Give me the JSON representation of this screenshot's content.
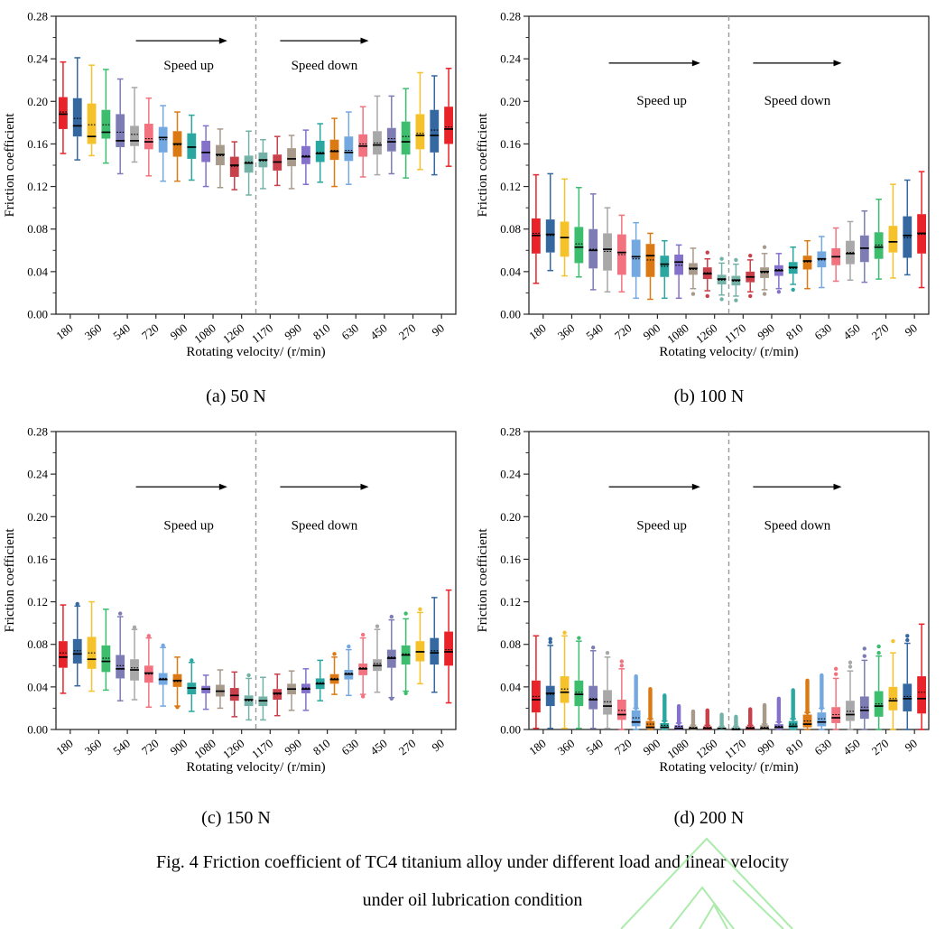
{
  "page": {
    "figure_caption_line1": "Fig. 4 Friction coefficient of TC4 titanium alloy under different load and linear velocity",
    "figure_caption_line2": "under oil lubrication condition"
  },
  "axis": {
    "ylabel": "Friction coefficient",
    "xlabel": "Rotating velocity/ (r/min)",
    "ymin": 0,
    "ymax": 0.28,
    "ytick_labels": [
      "0.00",
      "0.04",
      "0.08",
      "0.12",
      "0.16",
      "0.20",
      "0.24",
      "0.28"
    ],
    "minor_tick_step": 0.02,
    "categories": [
      "180",
      "360",
      "540",
      "720",
      "900",
      "1080",
      "1260",
      "1170",
      "990",
      "810",
      "630",
      "450",
      "270",
      "90"
    ]
  },
  "annotations": {
    "up": "Speed up",
    "down": "Speed down"
  },
  "palette": [
    "#e8232a",
    "#3568a0",
    "#f5c22b",
    "#3dbe6e",
    "#7d7cb5",
    "#a8a8a8",
    "#f2737f",
    "#74a8e0",
    "#db7a15",
    "#2aa7a0",
    "#8371cc",
    "#a79a8b",
    "#c9404a",
    "#74b2a7"
  ],
  "divider_color": "#999999",
  "frame_color": "#2b2b2b",
  "watermark": {
    "color": "#9fe89f"
  },
  "chart_data": [
    {
      "id": "a",
      "type": "box",
      "caption": "(a) 50 N",
      "load": "50 N",
      "arrow_v": 0.257,
      "text_v": 0.23,
      "boxes": [
        [
          0.151,
          0.174,
          0.188,
          0.19,
          0.204,
          0.237
        ],
        [
          0.145,
          0.167,
          0.177,
          0.184,
          0.203,
          0.241
        ],
        [
          0.149,
          0.16,
          0.167,
          0.178,
          0.198,
          0.234
        ],
        [
          0.142,
          0.165,
          0.171,
          0.178,
          0.192,
          0.23
        ],
        [
          0.132,
          0.157,
          0.163,
          0.171,
          0.188,
          0.221
        ],
        [
          0.143,
          0.158,
          0.163,
          0.169,
          0.177,
          0.213
        ],
        [
          0.13,
          0.155,
          0.162,
          0.165,
          0.179,
          0.203
        ],
        [
          0.125,
          0.152,
          0.166,
          0.164,
          0.176,
          0.196
        ],
        [
          0.125,
          0.148,
          0.16,
          0.159,
          0.172,
          0.19
        ],
        [
          0.126,
          0.146,
          0.157,
          0.157,
          0.17,
          0.187
        ],
        [
          0.12,
          0.143,
          0.152,
          0.152,
          0.163,
          0.177
        ],
        [
          0.119,
          0.14,
          0.15,
          0.149,
          0.159,
          0.174
        ],
        [
          0.117,
          0.129,
          0.14,
          0.139,
          0.148,
          0.162
        ],
        [
          0.112,
          0.133,
          0.142,
          0.143,
          0.149,
          0.172
        ],
        [
          0.118,
          0.138,
          0.145,
          0.144,
          0.152,
          0.164
        ],
        [
          0.121,
          0.135,
          0.143,
          0.143,
          0.15,
          0.167
        ],
        [
          0.118,
          0.139,
          0.146,
          0.146,
          0.156,
          0.168
        ],
        [
          0.122,
          0.141,
          0.148,
          0.149,
          0.158,
          0.173
        ],
        [
          0.124,
          0.143,
          0.151,
          0.152,
          0.163,
          0.179
        ],
        [
          0.12,
          0.145,
          0.153,
          0.154,
          0.164,
          0.184
        ],
        [
          0.122,
          0.144,
          0.152,
          0.154,
          0.167,
          0.19
        ],
        [
          0.129,
          0.148,
          0.158,
          0.16,
          0.169,
          0.195
        ],
        [
          0.131,
          0.15,
          0.159,
          0.161,
          0.172,
          0.205
        ],
        [
          0.132,
          0.153,
          0.162,
          0.165,
          0.175,
          0.205
        ],
        [
          0.128,
          0.15,
          0.162,
          0.167,
          0.181,
          0.212
        ],
        [
          0.136,
          0.155,
          0.168,
          0.17,
          0.188,
          0.227
        ],
        [
          0.131,
          0.152,
          0.168,
          0.173,
          0.192,
          0.224
        ],
        [
          0.139,
          0.16,
          0.174,
          0.176,
          0.195,
          0.231
        ]
      ],
      "outliers": [],
      "outlier_columns": []
    },
    {
      "id": "b",
      "type": "box",
      "caption": "(b) 100 N",
      "load": "100 N",
      "arrow_v": 0.236,
      "text_v": 0.197,
      "boxes": [
        [
          0.029,
          0.057,
          0.074,
          0.076,
          0.09,
          0.131
        ],
        [
          0.041,
          0.058,
          0.075,
          0.074,
          0.089,
          0.132
        ],
        [
          0.036,
          0.054,
          0.072,
          0.072,
          0.087,
          0.127
        ],
        [
          0.035,
          0.048,
          0.063,
          0.066,
          0.082,
          0.119
        ],
        [
          0.023,
          0.043,
          0.06,
          0.061,
          0.08,
          0.113
        ],
        [
          0.021,
          0.041,
          0.061,
          0.059,
          0.076,
          0.1
        ],
        [
          0.021,
          0.037,
          0.058,
          0.056,
          0.075,
          0.093
        ],
        [
          0.015,
          0.035,
          0.054,
          0.052,
          0.07,
          0.086
        ],
        [
          0.014,
          0.035,
          0.055,
          0.051,
          0.066,
          0.076
        ],
        [
          0.015,
          0.035,
          0.047,
          0.045,
          0.055,
          0.069
        ],
        [
          0.015,
          0.037,
          0.049,
          0.046,
          0.056,
          0.065
        ],
        [
          0.024,
          0.037,
          0.043,
          0.042,
          0.048,
          0.062
        ],
        [
          0.022,
          0.033,
          0.038,
          0.039,
          0.044,
          0.052
        ],
        [
          0.018,
          0.028,
          0.033,
          0.032,
          0.037,
          0.048
        ],
        [
          0.017,
          0.027,
          0.032,
          0.031,
          0.036,
          0.047
        ],
        [
          0.021,
          0.03,
          0.035,
          0.035,
          0.04,
          0.051
        ],
        [
          0.023,
          0.034,
          0.04,
          0.039,
          0.044,
          0.057
        ],
        [
          0.024,
          0.036,
          0.041,
          0.042,
          0.046,
          0.057
        ],
        [
          0.028,
          0.038,
          0.044,
          0.043,
          0.049,
          0.063
        ],
        [
          0.024,
          0.042,
          0.05,
          0.049,
          0.055,
          0.069
        ],
        [
          0.025,
          0.044,
          0.052,
          0.051,
          0.059,
          0.073
        ],
        [
          0.031,
          0.046,
          0.054,
          0.054,
          0.062,
          0.081
        ],
        [
          0.032,
          0.047,
          0.057,
          0.058,
          0.069,
          0.087
        ],
        [
          0.03,
          0.049,
          0.062,
          0.062,
          0.074,
          0.097
        ],
        [
          0.033,
          0.052,
          0.063,
          0.065,
          0.077,
          0.108
        ],
        [
          0.034,
          0.058,
          0.068,
          0.068,
          0.083,
          0.122
        ],
        [
          0.037,
          0.053,
          0.074,
          0.072,
          0.092,
          0.126
        ],
        [
          0.025,
          0.057,
          0.076,
          0.075,
          0.094,
          0.134
        ]
      ],
      "outliers": [
        [
          11,
          0.019
        ],
        [
          12,
          0.058
        ],
        [
          12,
          0.017
        ],
        [
          13,
          0.052
        ],
        [
          13,
          0.014
        ],
        [
          14,
          0.051
        ],
        [
          14,
          0.013
        ],
        [
          15,
          0.055
        ],
        [
          15,
          0.017
        ],
        [
          16,
          0.063
        ],
        [
          16,
          0.019
        ],
        [
          17,
          0.021
        ],
        [
          18,
          0.023
        ]
      ],
      "outlier_columns": []
    },
    {
      "id": "c",
      "type": "box",
      "caption": "(c) 150 N",
      "load": "150 N",
      "arrow_v": 0.228,
      "text_v": 0.188,
      "boxes": [
        [
          0.034,
          0.058,
          0.068,
          0.072,
          0.083,
          0.117
        ],
        [
          0.041,
          0.062,
          0.071,
          0.074,
          0.085,
          0.116
        ],
        [
          0.036,
          0.057,
          0.066,
          0.072,
          0.087,
          0.12
        ],
        [
          0.037,
          0.054,
          0.064,
          0.067,
          0.079,
          0.113
        ],
        [
          0.027,
          0.048,
          0.057,
          0.06,
          0.07,
          0.106
        ],
        [
          0.028,
          0.046,
          0.056,
          0.058,
          0.066,
          0.094
        ],
        [
          0.021,
          0.044,
          0.053,
          0.052,
          0.06,
          0.086
        ],
        [
          0.022,
          0.042,
          0.047,
          0.048,
          0.053,
          0.077
        ],
        [
          0.022,
          0.04,
          0.046,
          0.045,
          0.052,
          0.068
        ],
        [
          0.017,
          0.033,
          0.039,
          0.039,
          0.044,
          0.063
        ],
        [
          0.019,
          0.034,
          0.038,
          0.038,
          0.041,
          0.051
        ],
        [
          0.02,
          0.031,
          0.036,
          0.036,
          0.042,
          0.056
        ],
        [
          0.012,
          0.027,
          0.032,
          0.032,
          0.039,
          0.054
        ],
        [
          0.009,
          0.022,
          0.028,
          0.027,
          0.032,
          0.048
        ],
        [
          0.009,
          0.022,
          0.027,
          0.027,
          0.031,
          0.049
        ],
        [
          0.013,
          0.028,
          0.034,
          0.033,
          0.038,
          0.052
        ],
        [
          0.018,
          0.033,
          0.038,
          0.038,
          0.043,
          0.055
        ],
        [
          0.018,
          0.034,
          0.038,
          0.039,
          0.043,
          0.057
        ],
        [
          0.027,
          0.038,
          0.043,
          0.044,
          0.048,
          0.065
        ],
        [
          0.033,
          0.043,
          0.047,
          0.048,
          0.052,
          0.068
        ],
        [
          0.032,
          0.047,
          0.052,
          0.053,
          0.056,
          0.075
        ],
        [
          0.033,
          0.051,
          0.057,
          0.058,
          0.062,
          0.086
        ],
        [
          0.035,
          0.055,
          0.06,
          0.062,
          0.066,
          0.094
        ],
        [
          0.03,
          0.058,
          0.067,
          0.068,
          0.075,
          0.103
        ],
        [
          0.036,
          0.061,
          0.07,
          0.071,
          0.079,
          0.104
        ],
        [
          0.043,
          0.064,
          0.073,
          0.073,
          0.083,
          0.11
        ],
        [
          0.035,
          0.061,
          0.072,
          0.074,
          0.086,
          0.124
        ],
        [
          0.025,
          0.06,
          0.073,
          0.075,
          0.092,
          0.131
        ]
      ],
      "outliers": [
        [
          1,
          0.118
        ],
        [
          4,
          0.109
        ],
        [
          5,
          0.096
        ],
        [
          6,
          0.088
        ],
        [
          7,
          0.079
        ],
        [
          8,
          0.021
        ],
        [
          9,
          0.065
        ],
        [
          13,
          0.051
        ],
        [
          19,
          0.071
        ],
        [
          20,
          0.078
        ],
        [
          21,
          0.089
        ],
        [
          21,
          0.031
        ],
        [
          22,
          0.097
        ],
        [
          23,
          0.106
        ],
        [
          23,
          0.029
        ],
        [
          24,
          0.109
        ],
        [
          24,
          0.034
        ],
        [
          25,
          0.113
        ]
      ],
      "outlier_columns": []
    },
    {
      "id": "d",
      "type": "box",
      "caption": "(d) 200 N",
      "load": "200 N",
      "arrow_v": 0.228,
      "text_v": 0.188,
      "boxes": [
        [
          0.001,
          0.016,
          0.028,
          0.031,
          0.046,
          0.088
        ],
        [
          0.001,
          0.022,
          0.034,
          0.033,
          0.041,
          0.079
        ],
        [
          0.001,
          0.025,
          0.035,
          0.038,
          0.05,
          0.088
        ],
        [
          0.001,
          0.022,
          0.033,
          0.035,
          0.046,
          0.083
        ],
        [
          0.001,
          0.019,
          0.028,
          0.029,
          0.041,
          0.074
        ],
        [
          0.001,
          0.014,
          0.022,
          0.026,
          0.037,
          0.068
        ],
        [
          0.0,
          0.009,
          0.014,
          0.018,
          0.028,
          0.057
        ],
        [
          0.0,
          0.003,
          0.007,
          0.011,
          0.018,
          0.02
        ],
        [
          0.0,
          0.001,
          0.002,
          0.005,
          0.008,
          0.01
        ],
        [
          0.0,
          0.001,
          0.002,
          0.004,
          0.006,
          0.008
        ],
        [
          0.0,
          0.0,
          0.001,
          0.003,
          0.004,
          0.006
        ],
        [
          0.0,
          0.0,
          0.001,
          0.002,
          0.003,
          0.004
        ],
        [
          0.0,
          0.0,
          0.001,
          0.002,
          0.003,
          0.004
        ],
        [
          0.0,
          0.0,
          0.001,
          0.001,
          0.002,
          0.003
        ],
        [
          0.0,
          0.0,
          0.0,
          0.001,
          0.002,
          0.003
        ],
        [
          0.0,
          0.0,
          0.001,
          0.002,
          0.003,
          0.004
        ],
        [
          0.0,
          0.0,
          0.001,
          0.002,
          0.004,
          0.005
        ],
        [
          0.0,
          0.001,
          0.002,
          0.003,
          0.005,
          0.007
        ],
        [
          0.0,
          0.001,
          0.003,
          0.005,
          0.008,
          0.01
        ],
        [
          0.0,
          0.002,
          0.005,
          0.008,
          0.014,
          0.016
        ],
        [
          0.0,
          0.003,
          0.007,
          0.01,
          0.016,
          0.02
        ],
        [
          0.0,
          0.006,
          0.011,
          0.014,
          0.021,
          0.048
        ],
        [
          0.0,
          0.008,
          0.014,
          0.017,
          0.027,
          0.055
        ],
        [
          0.0,
          0.01,
          0.018,
          0.021,
          0.031,
          0.065
        ],
        [
          0.0,
          0.012,
          0.022,
          0.024,
          0.036,
          0.069
        ],
        [
          0.0,
          0.018,
          0.027,
          0.029,
          0.04,
          0.072
        ],
        [
          0.0,
          0.017,
          0.029,
          0.031,
          0.043,
          0.081
        ],
        [
          0.0,
          0.015,
          0.029,
          0.035,
          0.05,
          0.099
        ]
      ],
      "outliers": [
        [
          1,
          0.082
        ],
        [
          1,
          0.085
        ],
        [
          2,
          0.091
        ],
        [
          3,
          0.086
        ],
        [
          4,
          0.077
        ],
        [
          5,
          0.072
        ],
        [
          6,
          0.06
        ],
        [
          6,
          0.064
        ],
        [
          21,
          0.052
        ],
        [
          21,
          0.057
        ],
        [
          22,
          0.059
        ],
        [
          22,
          0.063
        ],
        [
          23,
          0.069
        ],
        [
          23,
          0.076
        ],
        [
          24,
          0.072
        ],
        [
          24,
          0.078
        ],
        [
          25,
          0.083
        ],
        [
          26,
          0.084
        ],
        [
          26,
          0.088
        ]
      ],
      "outlier_columns": [
        [
          7,
          0.02,
          0.05
        ],
        [
          8,
          0.01,
          0.038
        ],
        [
          9,
          0.008,
          0.032
        ],
        [
          10,
          0.006,
          0.022
        ],
        [
          11,
          0.004,
          0.017
        ],
        [
          12,
          0.004,
          0.018
        ],
        [
          13,
          0.003,
          0.014
        ],
        [
          14,
          0.003,
          0.012
        ],
        [
          15,
          0.004,
          0.019
        ],
        [
          16,
          0.005,
          0.023
        ],
        [
          17,
          0.007,
          0.029
        ],
        [
          18,
          0.01,
          0.037
        ],
        [
          19,
          0.016,
          0.046
        ],
        [
          20,
          0.02,
          0.051
        ]
      ]
    }
  ]
}
